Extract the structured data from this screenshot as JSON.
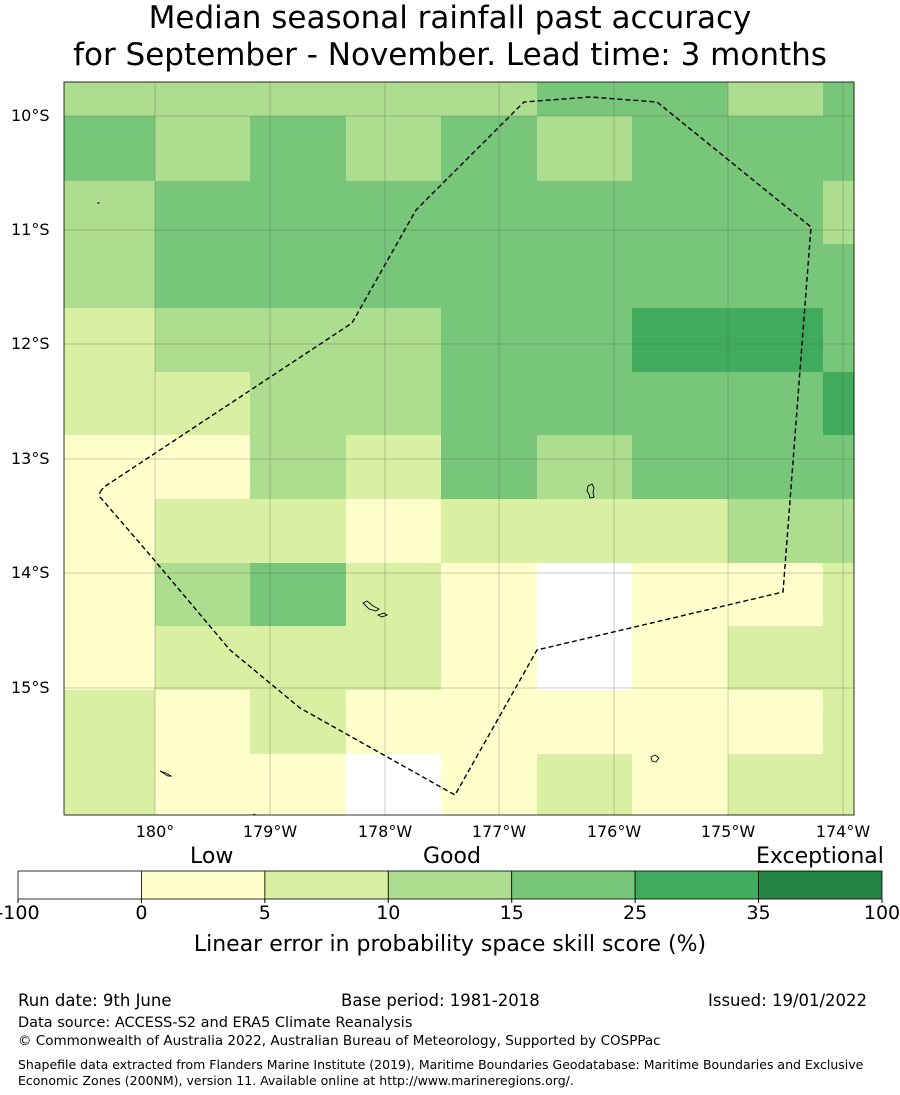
{
  "title": {
    "line1": "Median seasonal rainfall past accuracy",
    "line2": "for September - November. Lead time: 3 months"
  },
  "map": {
    "lat_labels": [
      "10°S",
      "11°S",
      "12°S",
      "13°S",
      "14°S",
      "15°S"
    ],
    "lon_labels": [
      "180°",
      "179°W",
      "178°W",
      "177°W",
      "176°W",
      "175°W",
      "174°W"
    ],
    "palette": [
      "#ffffff",
      "#ffffcc",
      "#d9f0a3",
      "#addd8e",
      "#78c679",
      "#41ab5d",
      "#238443"
    ],
    "grid_rows": [
      [
        3,
        3,
        3,
        3,
        3,
        4,
        4,
        3,
        4
      ],
      [
        4,
        3,
        4,
        3,
        4,
        3,
        4,
        4,
        4
      ],
      [
        3,
        4,
        4,
        4,
        4,
        4,
        4,
        4,
        3
      ],
      [
        3,
        4,
        4,
        4,
        4,
        4,
        4,
        4,
        4
      ],
      [
        2,
        3,
        3,
        3,
        4,
        4,
        5,
        5,
        4
      ],
      [
        2,
        2,
        3,
        3,
        4,
        4,
        4,
        4,
        5
      ],
      [
        1,
        1,
        3,
        2,
        4,
        3,
        4,
        4,
        4
      ],
      [
        1,
        2,
        2,
        1,
        2,
        2,
        2,
        3,
        3
      ],
      [
        1,
        3,
        4,
        2,
        1,
        0,
        1,
        1,
        2
      ],
      [
        1,
        2,
        2,
        2,
        1,
        0,
        1,
        2,
        2
      ],
      [
        2,
        1,
        2,
        1,
        1,
        1,
        1,
        1,
        2
      ],
      [
        2,
        1,
        1,
        0,
        1,
        2,
        1,
        2,
        2
      ]
    ]
  },
  "colorbar": {
    "categories": [
      "Low",
      "Good",
      "Exceptional"
    ],
    "ticks": [
      "-100",
      "0",
      "5",
      "10",
      "15",
      "25",
      "35",
      "100"
    ],
    "colors": [
      "#ffffff",
      "#ffffcc",
      "#d9f0a3",
      "#addd8e",
      "#78c679",
      "#41ab5d",
      "#238443"
    ],
    "label": "Linear error in probability space skill score (%)"
  },
  "footer": {
    "run_date": "Run date: 9th June",
    "base_period": "Base period: 1981-2018",
    "issued": "Issued: 19/01/2022",
    "data_source": "Data source: ACCESS-S2 and ERA5 Climate Reanalysis",
    "copyright": "© Commonwealth of Australia 2022, Australian Bureau of Meteorology, Supported by COSPPac",
    "shapefile": "Shapefile data extracted from Flanders Marine Institute (2019), Maritime Boundaries Geodatabase: Maritime Boundaries and Exclusive Economic Zones (200NM), version 11. Available online at http://www.marineregions.org/."
  }
}
